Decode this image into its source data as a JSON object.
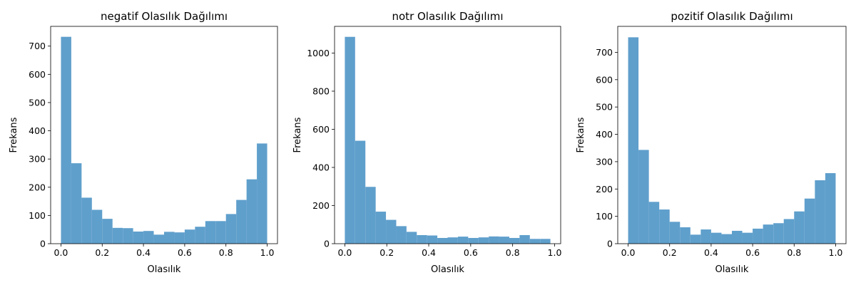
{
  "chart_data": [
    {
      "type": "bar",
      "title": "negatif Olasılık Dağılımı",
      "xlabel": "Olasılık",
      "ylabel": "Frekans",
      "xlim": [
        -0.05,
        1.05
      ],
      "ylim": [
        0,
        770
      ],
      "xticks": [
        "0.0",
        "0.2",
        "0.4",
        "0.6",
        "0.8",
        "1.0"
      ],
      "xtick_values": [
        0,
        0.2,
        0.4,
        0.6,
        0.8,
        1.0
      ],
      "yticks": [
        "0",
        "100",
        "200",
        "300",
        "400",
        "500",
        "600",
        "700"
      ],
      "ytick_values": [
        0,
        100,
        200,
        300,
        400,
        500,
        600,
        700
      ],
      "bin_edges": [
        0,
        0.05,
        0.1,
        0.15,
        0.2,
        0.25,
        0.3,
        0.35,
        0.4,
        0.45,
        0.5,
        0.55,
        0.6,
        0.65,
        0.7,
        0.75,
        0.8,
        0.85,
        0.9,
        0.95,
        1.0
      ],
      "values": [
        733,
        285,
        163,
        120,
        88,
        56,
        55,
        43,
        45,
        32,
        42,
        40,
        50,
        60,
        80,
        80,
        105,
        155,
        228,
        355
      ],
      "bar_color": "#5f9fcc",
      "grid": false
    },
    {
      "type": "bar",
      "title": "notr Olasılık Dağılımı",
      "xlabel": "Olasılık",
      "ylabel": "Frekans",
      "xlim": [
        -0.049,
        1.029
      ],
      "ylim": [
        0,
        1140
      ],
      "xticks": [
        "0.0",
        "0.2",
        "0.4",
        "0.6",
        "0.8",
        "1.0"
      ],
      "xtick_values": [
        0,
        0.2,
        0.4,
        0.6,
        0.8,
        1.0
      ],
      "yticks": [
        "0",
        "200",
        "400",
        "600",
        "800",
        "1000"
      ],
      "ytick_values": [
        0,
        200,
        400,
        600,
        800,
        1000
      ],
      "bin_edges": [
        0,
        0.049,
        0.098,
        0.147,
        0.196,
        0.245,
        0.294,
        0.343,
        0.392,
        0.441,
        0.49,
        0.539,
        0.588,
        0.637,
        0.686,
        0.735,
        0.784,
        0.833,
        0.882,
        0.931,
        0.98
      ],
      "values": [
        1085,
        540,
        298,
        168,
        125,
        92,
        62,
        45,
        43,
        30,
        33,
        37,
        30,
        33,
        38,
        37,
        30,
        45,
        25,
        25
      ],
      "bar_color": "#5f9fcc",
      "grid": false
    },
    {
      "type": "bar",
      "title": "pozitif Olasılık Dağılımı",
      "xlabel": "Olasılık",
      "ylabel": "Frekans",
      "xlim": [
        -0.05,
        1.05
      ],
      "ylim": [
        0,
        795
      ],
      "xticks": [
        "0.0",
        "0.2",
        "0.4",
        "0.6",
        "0.8",
        "1.0"
      ],
      "xtick_values": [
        0,
        0.2,
        0.4,
        0.6,
        0.8,
        1.0
      ],
      "yticks": [
        "0",
        "100",
        "200",
        "300",
        "400",
        "500",
        "600",
        "700"
      ],
      "ytick_values": [
        0,
        100,
        200,
        300,
        400,
        500,
        600,
        700
      ],
      "bin_edges": [
        0,
        0.05,
        0.1,
        0.15,
        0.2,
        0.25,
        0.3,
        0.35,
        0.4,
        0.45,
        0.5,
        0.55,
        0.6,
        0.65,
        0.7,
        0.75,
        0.8,
        0.85,
        0.9,
        0.95,
        1.0
      ],
      "values": [
        755,
        343,
        153,
        125,
        80,
        60,
        33,
        52,
        40,
        35,
        47,
        40,
        55,
        70,
        75,
        90,
        118,
        165,
        232,
        258
      ],
      "bar_color": "#5f9fcc",
      "grid": false
    }
  ]
}
